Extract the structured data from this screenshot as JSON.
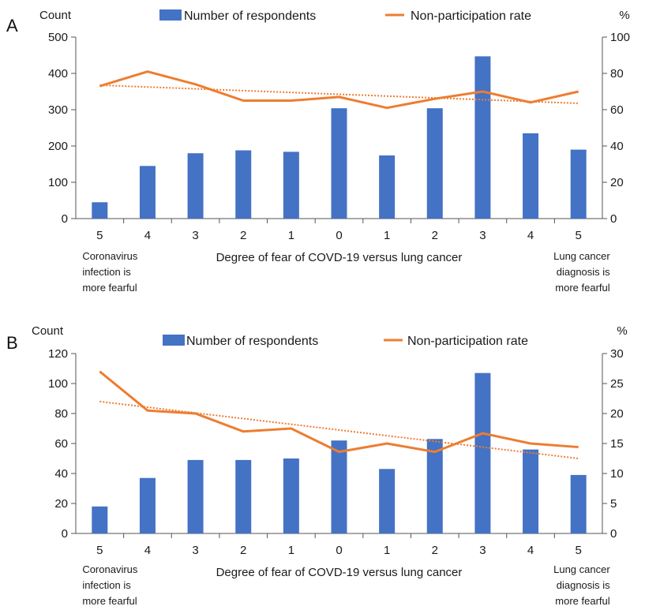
{
  "colors": {
    "bar": "#4472C4",
    "line": "#ED7D31",
    "axis": "#555555"
  },
  "chart_data": [
    {
      "type": "bar",
      "panel_label": "A",
      "categories": [
        "5",
        "4",
        "3",
        "2",
        "1",
        "0",
        "1",
        "2",
        "3",
        "4",
        "5"
      ],
      "left_axis_title": "Count",
      "right_axis_title": "%",
      "xlabel": "Degree of fear of COVD-19 versus lung cancer",
      "left_note": [
        "Coronavirus",
        "infection is",
        "more fearful"
      ],
      "right_note": [
        "Lung cancer",
        "diagnosis is",
        "more fearful"
      ],
      "ylim": [
        0,
        500
      ],
      "yticks": [
        0,
        100,
        200,
        300,
        400,
        500
      ],
      "y2lim": [
        0,
        100
      ],
      "y2ticks": [
        0,
        20,
        40,
        60,
        80,
        100
      ],
      "series": [
        {
          "name": "Number of respondents",
          "type": "bar",
          "axis": "left",
          "values": [
            45,
            145,
            180,
            188,
            184,
            304,
            174,
            304,
            447,
            235,
            190
          ]
        },
        {
          "name": "Non-participation rate",
          "type": "line",
          "axis": "right",
          "values": [
            73,
            81,
            74,
            65,
            65,
            67,
            61,
            66,
            70,
            64,
            70
          ]
        }
      ],
      "trendline": {
        "axis": "right",
        "start": 73.5,
        "end": 63.5
      },
      "legend_position": "top"
    },
    {
      "type": "bar",
      "panel_label": "B",
      "categories": [
        "5",
        "4",
        "3",
        "2",
        "1",
        "0",
        "1",
        "2",
        "3",
        "4",
        "5"
      ],
      "left_axis_title": "Count",
      "right_axis_title": "%",
      "xlabel": "Degree of fear of COVD-19 versus lung cancer",
      "left_note": [
        "Coronavirus",
        "infection is",
        "more fearful"
      ],
      "right_note": [
        "Lung cancer",
        "diagnosis is",
        "more fearful"
      ],
      "ylim": [
        0,
        120
      ],
      "yticks": [
        0,
        20,
        40,
        60,
        80,
        100,
        120
      ],
      "y2lim": [
        0,
        30
      ],
      "y2ticks": [
        0,
        5,
        10,
        15,
        20,
        25,
        30
      ],
      "series": [
        {
          "name": "Number of respondents",
          "type": "bar",
          "axis": "left",
          "values": [
            18,
            37,
            49,
            49,
            50,
            62,
            43,
            63,
            107,
            56,
            39
          ]
        },
        {
          "name": "Non-participation rate",
          "type": "line",
          "axis": "right",
          "values": [
            27,
            20.5,
            20,
            17,
            17.5,
            13.6,
            15,
            13.6,
            16.7,
            15,
            14.4
          ]
        }
      ],
      "trendline": {
        "axis": "right",
        "start": 22,
        "end": 12.5
      },
      "legend_position": "top"
    }
  ]
}
